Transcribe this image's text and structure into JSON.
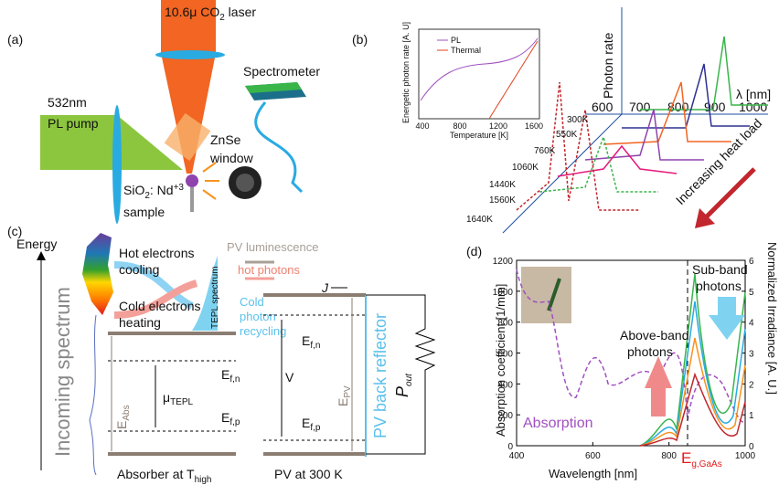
{
  "panel_a": {
    "label": "(a)",
    "laser_1": "10.6μ CO",
    "laser_sub": "2",
    "laser_2": " laser",
    "pump_wavelength": "532nm",
    "pump_name": "PL pump",
    "spectrometer": "Spectrometer",
    "window_1": "ZnSe",
    "window_2": "window",
    "sample_1": "SiO",
    "sample_sub": "2",
    "sample_2": ": Nd",
    "sample_sup": "+3",
    "sample_3": "sample"
  },
  "panel_b": {
    "label": "(b)",
    "inset": {
      "y_label": "Energetic photon rate [A. U]",
      "x_label": "Temperature [K]",
      "xticks": [
        400,
        800,
        1200,
        1600
      ],
      "legend": [
        "PL",
        "Thermal"
      ]
    },
    "y_axis": "Photon rate",
    "x_axis": "λ [nm]",
    "xticks": [
      600,
      700,
      800,
      900,
      1000
    ],
    "temperatures": [
      "300K",
      "550K",
      "760K",
      "1060K",
      "1440K",
      "1560K",
      "1640K"
    ],
    "arrow": "Increasing heat load"
  },
  "panel_c": {
    "label": "(c)",
    "energy": "Energy",
    "incoming": "Incoming spectrum",
    "hot_1": "Hot electrons",
    "hot_2": "cooling",
    "cold_1": "Cold electrons",
    "cold_2": "heating",
    "tepl": "TEPL spectrum",
    "pv_lum": "PV luminescence",
    "hot_photons": "hot photons",
    "recycle_1": "Cold",
    "recycle_2": "photon",
    "recycle_3": "recycling",
    "current": "J",
    "e": "E",
    "fn": "f,n",
    "fp": "f,p",
    "mu": "μ",
    "mu_sub": "TEPL",
    "abs_sub": "Abs",
    "v": "V",
    "pv_sub": "PV",
    "reflector": "PV back reflector",
    "p": "P",
    "p_sub": "out",
    "absorber": "Absorber at T",
    "absorber_sub": "high",
    "pv": "PV at 300 K"
  },
  "panel_d": {
    "label": "(d)",
    "y_label": "Absorption coefficient [1/mm]",
    "yticks": [
      0,
      200,
      400,
      600,
      800,
      1000,
      1200
    ],
    "x_label": "Wavelength [nm]",
    "xticks": [
      400,
      600,
      800,
      1000
    ],
    "y2_label": "Normalized Irradiance [A. U.]",
    "y2ticks": [
      0,
      1,
      2,
      3,
      4,
      5,
      6
    ],
    "above_1": "Above-band",
    "above_2": "photons",
    "sub_1": "Sub-band",
    "sub_2": "photons",
    "absorption": "Absorption",
    "eg": "E",
    "eg_sub": "g,GaAs"
  }
}
